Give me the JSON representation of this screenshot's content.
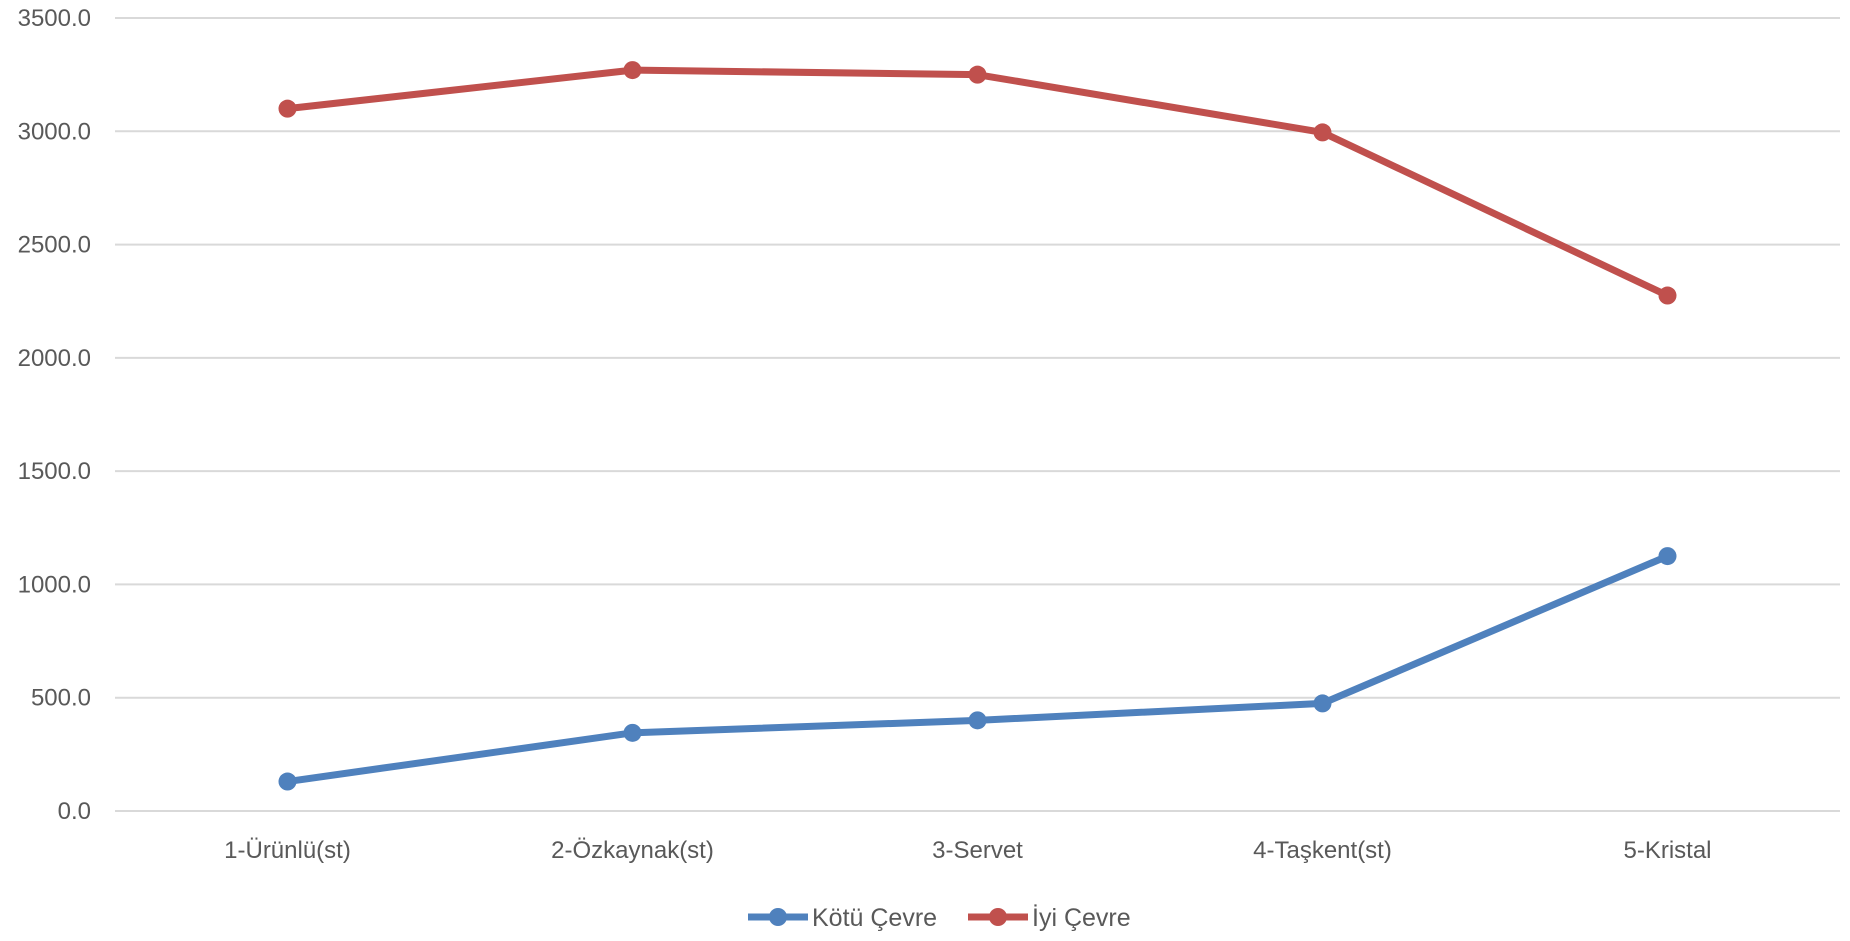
{
  "chart_data": {
    "type": "line",
    "title": "",
    "xlabel": "",
    "ylabel": "",
    "categories": [
      "1-Ürünlü(st)",
      "2-Özkaynak(st)",
      "3-Servet",
      "4-Taşkent(st)",
      "5-Kristal"
    ],
    "series": [
      {
        "name": "Kötü Çevre",
        "color": "#4F81BD",
        "values": [
          130,
          345,
          400,
          475,
          1125
        ]
      },
      {
        "name": "İyi Çevre",
        "color": "#C0504D",
        "values": [
          3100,
          3270,
          3250,
          2995,
          2275
        ]
      }
    ],
    "ylim": [
      0,
      3500
    ],
    "yticks": [
      "0.0",
      "500.0",
      "1000.0",
      "1500.0",
      "2000.0",
      "2500.0",
      "3000.0",
      "3500.0"
    ],
    "grid": true,
    "legend_position": "bottom"
  }
}
